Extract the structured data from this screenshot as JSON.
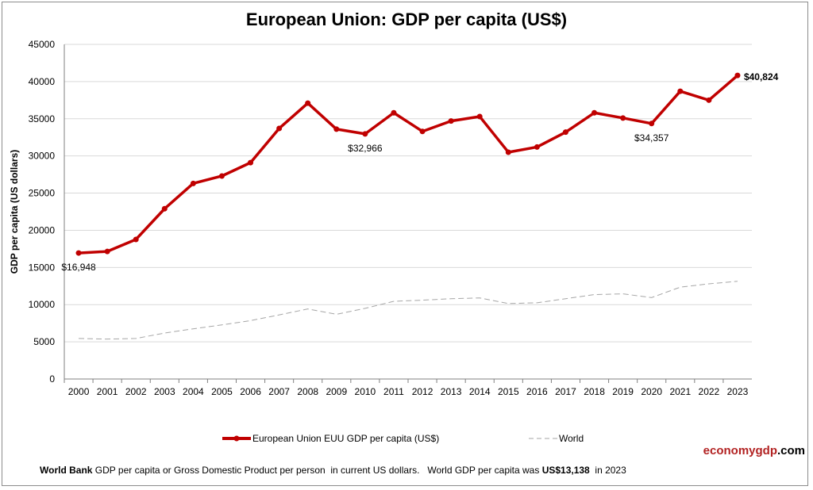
{
  "chart_data": {
    "type": "line",
    "title": "European Union: GDP per capita (US$)",
    "xlabel": "",
    "ylabel": "GDP per capita (US dollars)",
    "ylim": [
      0,
      45000
    ],
    "yticks": [
      "0",
      "5000",
      "10000",
      "15000",
      "20000",
      "25000",
      "30000",
      "35000",
      "40000",
      "45000"
    ],
    "grid": true,
    "x": [
      "2000",
      "2001",
      "2002",
      "2003",
      "2004",
      "2005",
      "2006",
      "2007",
      "2008",
      "2009",
      "2010",
      "2011",
      "2012",
      "2013",
      "2014",
      "2015",
      "2016",
      "2017",
      "2018",
      "2019",
      "2020",
      "2021",
      "2022",
      "2023"
    ],
    "series": [
      {
        "name": "European Union EUU GDP per capita (US$)",
        "color": "#c00000",
        "values": [
          16948,
          17150,
          18770,
          22900,
          26300,
          27300,
          29100,
          33700,
          37100,
          33600,
          32966,
          35800,
          33300,
          34700,
          35300,
          30500,
          31200,
          33200,
          35800,
          35100,
          34357,
          38700,
          37500,
          40824
        ]
      },
      {
        "name": "World",
        "color": "#a6a6a6",
        "values": [
          5450,
          5370,
          5450,
          6180,
          6750,
          7280,
          7850,
          8620,
          9420,
          8700,
          9500,
          10450,
          10600,
          10800,
          10900,
          10150,
          10250,
          10800,
          11350,
          11450,
          10950,
          12350,
          12800,
          13138
        ]
      }
    ],
    "annotations": [
      {
        "index": 0,
        "text": "$16,948"
      },
      {
        "index": 10,
        "text": "$32,966"
      },
      {
        "index": 20,
        "text": "$34,357"
      },
      {
        "index": 23,
        "text": "$40,824"
      }
    ],
    "legend_position": "bottom"
  },
  "brand": {
    "part1": "economygdp",
    "part2": ".com"
  },
  "footer": {
    "bold1": "World Bank",
    "text1": " GDP per capita or Gross Domestic Product per person  in current US dollars.   World GDP per capita was ",
    "bold2": "US$13,138",
    "text2": "  in 2023"
  }
}
